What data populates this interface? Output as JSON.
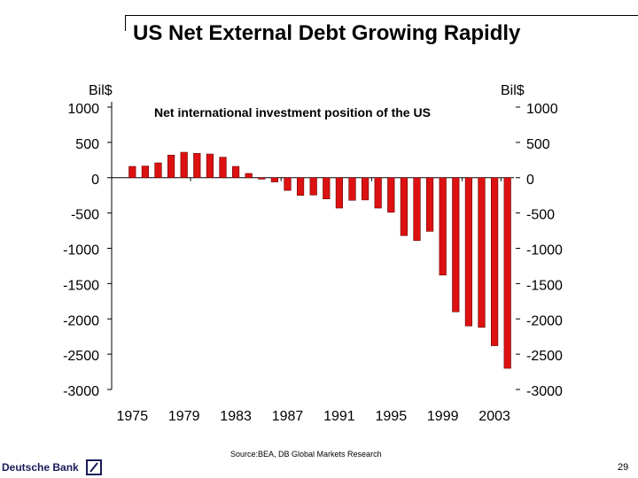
{
  "slide": {
    "title": "US Net External Debt Growing Rapidly",
    "source": "Source:BEA, DB Global Markets Research",
    "page_number": "29",
    "brand": "Deutsche Bank"
  },
  "colors": {
    "bar": "#dd1111",
    "bar_edge": "#6a0000",
    "text": "#000000",
    "brand": "#1a1a5a"
  },
  "chart_data": {
    "type": "bar",
    "title": "Net international investment position of the US",
    "ylabel_left": "Bil$",
    "ylabel_right": "Bil$",
    "ylim": [
      -3000,
      1000
    ],
    "yticks": [
      1000,
      500,
      0,
      -500,
      -1000,
      -1500,
      -2000,
      -2500,
      -3000
    ],
    "ytick_labels": [
      "1000",
      "500",
      "0",
      "-500",
      "-1000",
      "-1500",
      "-2000",
      "-2500",
      "-3000"
    ],
    "categories": [
      1975,
      1976,
      1977,
      1978,
      1979,
      1980,
      1981,
      1982,
      1983,
      1984,
      1985,
      1986,
      1987,
      1988,
      1989,
      1990,
      1991,
      1992,
      1993,
      1994,
      1995,
      1996,
      1997,
      1998,
      1999,
      2000,
      2001,
      2002,
      2003,
      2004
    ],
    "xtick_labels": [
      "1975",
      "1979",
      "1983",
      "1987",
      "1991",
      "1995",
      "1999",
      "2003"
    ],
    "xtick_years": [
      1975,
      1979,
      1983,
      1987,
      1991,
      1995,
      1999,
      2003
    ],
    "values": [
      160,
      165,
      210,
      320,
      360,
      345,
      335,
      290,
      160,
      60,
      -20,
      -60,
      -180,
      -250,
      -245,
      -300,
      -430,
      -320,
      -315,
      -430,
      -490,
      -820,
      -890,
      -760,
      -1380,
      -1900,
      -2100,
      -2120,
      -2380,
      -2700
    ]
  }
}
